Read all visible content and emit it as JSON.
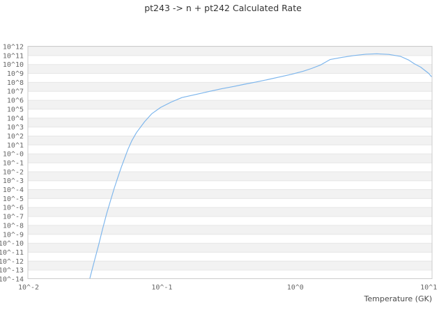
{
  "chart_data": {
    "type": "line",
    "title": "pt243 -> n + pt242 Calculated Rate",
    "xlabel": "Temperature (GK)",
    "ylabel": "",
    "x_axis": {
      "scale": "log",
      "tick_labels": [
        "10^-2",
        "10^-1",
        "10^0",
        "10^1"
      ],
      "tick_log_values": [
        -2,
        -1,
        0,
        1
      ],
      "log_min": -2,
      "log_max": 1.03
    },
    "y_axis": {
      "scale": "log",
      "tick_labels": [
        "10^12",
        "10^11",
        "10^10",
        "10^9",
        "10^8",
        "10^7",
        "10^6",
        "10^5",
        "10^4",
        "10^3",
        "10^2",
        "10^1",
        "10^-0",
        "10^-1",
        "10^-2",
        "10^-3",
        "10^-4",
        "10^-5",
        "10^-6",
        "10^-7",
        "10^-8",
        "10^-9",
        "10^-10",
        "10^-11",
        "10^-12",
        "10^-13",
        "10^-14"
      ],
      "tick_log_values": [
        12,
        11,
        10,
        9,
        8,
        7,
        6,
        5,
        4,
        3,
        2,
        1,
        0,
        -1,
        -2,
        -3,
        -4,
        -5,
        -6,
        -7,
        -8,
        -9,
        -10,
        -11,
        -12,
        -13,
        -14
      ],
      "log_min": -14,
      "log_max": 12
    },
    "grid": {
      "alternating_bands": true,
      "vertical_gridlines": false,
      "legend": "none"
    },
    "series": [
      {
        "id": "calculated-rate",
        "color": "#7cb5ec",
        "points_log10_temperature_rate": [
          [
            -1.54,
            -13.9
          ],
          [
            -1.505,
            -11.9
          ],
          [
            -1.475,
            -10.2
          ],
          [
            -1.445,
            -8.4
          ],
          [
            -1.415,
            -6.7
          ],
          [
            -1.385,
            -5.2
          ],
          [
            -1.357,
            -3.8
          ],
          [
            -1.33,
            -2.6
          ],
          [
            -1.305,
            -1.5
          ],
          [
            -1.28,
            -0.5
          ],
          [
            -1.255,
            0.5
          ],
          [
            -1.225,
            1.5
          ],
          [
            -1.19,
            2.4
          ],
          [
            -1.13,
            3.6
          ],
          [
            -1.075,
            4.5
          ],
          [
            -1.01,
            5.2
          ],
          [
            -0.93,
            5.8
          ],
          [
            -0.85,
            6.3
          ],
          [
            -0.73,
            6.7
          ],
          [
            -0.64,
            7.0
          ],
          [
            -0.55,
            7.3
          ],
          [
            -0.46,
            7.55
          ],
          [
            -0.38,
            7.8
          ],
          [
            -0.29,
            8.05
          ],
          [
            -0.21,
            8.3
          ],
          [
            -0.12,
            8.6
          ],
          [
            -0.03,
            8.9
          ],
          [
            0.06,
            9.25
          ],
          [
            0.12,
            9.55
          ],
          [
            0.19,
            9.95
          ],
          [
            0.26,
            10.55
          ],
          [
            0.35,
            10.8
          ],
          [
            0.44,
            11.0
          ],
          [
            0.53,
            11.15
          ],
          [
            0.61,
            11.2
          ],
          [
            0.7,
            11.13
          ],
          [
            0.79,
            10.9
          ],
          [
            0.85,
            10.5
          ],
          [
            0.89,
            10.1
          ],
          [
            0.94,
            9.7
          ],
          [
            1.0,
            9.0
          ],
          [
            1.02,
            8.65
          ]
        ]
      }
    ],
    "peak": {
      "temperature_GK_log10": 0.61,
      "rate_log10": 11.2
    },
    "style": {
      "background": "#ffffff",
      "band_color": "#f2f2f2",
      "grid_line_color": "#e6e6e6",
      "border_color": "#cccccc",
      "tick_label_color": "#666666",
      "title_color": "#333333",
      "axis_title_color": "#4a4a4a"
    }
  }
}
